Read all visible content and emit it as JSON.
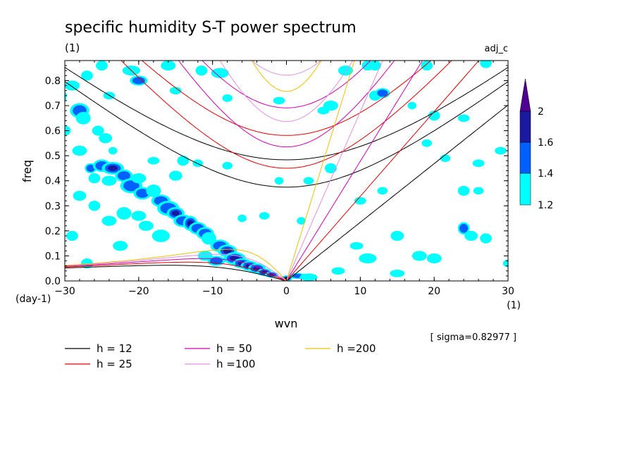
{
  "chart_data": {
    "type": "heatmap",
    "title": "specific humidity S-T power spectrum",
    "subtitle_left": "(1)",
    "subtitle_right": "adj_c",
    "xlabel": "wvn",
    "ylabel": "freq",
    "x_unit": "(1)",
    "y_unit": "(day-1)",
    "xlim": [
      -30,
      30
    ],
    "ylim": [
      0,
      0.88
    ],
    "x_ticks": [
      "-30",
      "-20",
      "-10",
      "0",
      "10",
      "20",
      "30"
    ],
    "y_ticks": [
      "0.0",
      "0.1",
      "0.2",
      "0.3",
      "0.4",
      "0.5",
      "0.6",
      "0.7",
      "0.8"
    ],
    "sigma_note": "[ sigma=0.82977 ]",
    "colorbar": {
      "levels": [
        "1.2",
        "1.4",
        "1.6",
        "2"
      ],
      "colors": [
        "#00ffff",
        "#0060ff",
        "#1a1aa0",
        "#500090"
      ]
    },
    "dispersion_curves": [
      {
        "label": "h = 12",
        "h": 12,
        "color": "#000000"
      },
      {
        "label": "h = 25",
        "h": 25,
        "color": "#e00000"
      },
      {
        "label": "h = 50",
        "h": 50,
        "color": "#d000b0"
      },
      {
        "label": "h =100",
        "h": 100,
        "color": "#e090e0"
      },
      {
        "label": "h =200",
        "h": 200,
        "color": "#f0c000"
      }
    ],
    "blobs": [
      [
        -31.0,
        0.73,
        1.2,
        0.03,
        1
      ],
      [
        -30.5,
        0.74,
        0.8,
        0.02,
        2
      ],
      [
        -29.0,
        0.78,
        1.0,
        0.02,
        0
      ],
      [
        -28,
        0.68,
        1.3,
        0.03,
        1
      ],
      [
        -27.5,
        0.65,
        1.0,
        0.025,
        0
      ],
      [
        -28,
        0.52,
        1.0,
        0.02,
        0
      ],
      [
        -27,
        0.82,
        0.8,
        0.02,
        0
      ],
      [
        -25,
        0.86,
        0.8,
        0.02,
        0
      ],
      [
        -21,
        0.84,
        1.2,
        0.02,
        0
      ],
      [
        -20,
        0.8,
        1.2,
        0.02,
        1
      ],
      [
        -16,
        0.86,
        1.0,
        0.02,
        0
      ],
      [
        -11.5,
        0.84,
        0.8,
        0.02,
        0
      ],
      [
        -9,
        0.83,
        1.2,
        0.02,
        0
      ],
      [
        -24.5,
        0.57,
        0.9,
        0.02,
        0
      ],
      [
        -23.5,
        0.52,
        0.6,
        0.015,
        0
      ],
      [
        -25.5,
        0.6,
        0.8,
        0.02,
        0
      ],
      [
        -26.5,
        0.45,
        0.8,
        0.02,
        1
      ],
      [
        -25,
        0.46,
        1.2,
        0.025,
        1
      ],
      [
        -23.5,
        0.45,
        1.5,
        0.025,
        2
      ],
      [
        -26,
        0.41,
        0.8,
        0.02,
        0
      ],
      [
        -22,
        0.42,
        1.2,
        0.025,
        1
      ],
      [
        -21,
        0.38,
        1.5,
        0.03,
        1
      ],
      [
        -24,
        0.4,
        1.0,
        0.02,
        0
      ],
      [
        -20,
        0.41,
        1.0,
        0.02,
        0
      ],
      [
        -19.5,
        0.35,
        1.2,
        0.025,
        1
      ],
      [
        -18,
        0.36,
        1.0,
        0.025,
        0
      ],
      [
        -17,
        0.32,
        1.3,
        0.025,
        1
      ],
      [
        -16,
        0.29,
        1.5,
        0.03,
        1
      ],
      [
        -15,
        0.27,
        1.2,
        0.025,
        2
      ],
      [
        -14,
        0.24,
        1.3,
        0.025,
        1
      ],
      [
        -13,
        0.23,
        1.0,
        0.03,
        2
      ],
      [
        -12,
        0.21,
        1.2,
        0.025,
        1
      ],
      [
        -11,
        0.19,
        1.2,
        0.025,
        1
      ],
      [
        -10.5,
        0.17,
        1.0,
        0.025,
        0
      ],
      [
        -9,
        0.14,
        1.3,
        0.025,
        1
      ],
      [
        -8,
        0.12,
        1.3,
        0.025,
        2
      ],
      [
        -7,
        0.09,
        1.5,
        0.025,
        2
      ],
      [
        -6,
        0.07,
        1.3,
        0.02,
        3
      ],
      [
        -5,
        0.06,
        1.2,
        0.02,
        2
      ],
      [
        -4,
        0.05,
        1.2,
        0.02,
        3
      ],
      [
        -3,
        0.035,
        1.0,
        0.015,
        2
      ],
      [
        -2,
        0.025,
        0.9,
        0.012,
        3
      ],
      [
        -9.5,
        0.08,
        1.2,
        0.02,
        1
      ],
      [
        -11,
        0.1,
        1.0,
        0.02,
        0
      ],
      [
        0,
        0.01,
        0.8,
        0.012,
        2
      ],
      [
        1.5,
        0.02,
        1.0,
        0.012,
        1
      ],
      [
        3,
        0.015,
        1.2,
        0.015,
        0
      ],
      [
        -22,
        0.27,
        1.0,
        0.025,
        0
      ],
      [
        -20,
        0.26,
        1.0,
        0.02,
        0
      ],
      [
        -24,
        0.24,
        1.0,
        0.02,
        0
      ],
      [
        -19,
        0.22,
        1.0,
        0.02,
        0
      ],
      [
        -17,
        0.18,
        1.2,
        0.025,
        0
      ],
      [
        -28,
        0.34,
        0.9,
        0.02,
        0
      ],
      [
        -26,
        0.3,
        0.8,
        0.02,
        0
      ],
      [
        -22.5,
        0.14,
        1.0,
        0.02,
        0
      ],
      [
        -29,
        0.18,
        0.8,
        0.02,
        0
      ],
      [
        -27,
        0.07,
        0.8,
        0.02,
        0
      ],
      [
        -15,
        0.42,
        0.9,
        0.02,
        0
      ],
      [
        -14,
        0.48,
        0.8,
        0.02,
        0
      ],
      [
        -18,
        0.48,
        0.8,
        0.015,
        0
      ],
      [
        -12,
        0.47,
        0.7,
        0.015,
        0
      ],
      [
        -8,
        0.46,
        0.7,
        0.015,
        0
      ],
      [
        -30,
        0.6,
        0.8,
        0.02,
        0
      ],
      [
        -24,
        0.74,
        0.8,
        0.015,
        0
      ],
      [
        -15,
        0.76,
        0.8,
        0.015,
        0
      ],
      [
        -8,
        0.73,
        0.7,
        0.015,
        0
      ],
      [
        -1,
        0.72,
        0.8,
        0.015,
        0
      ],
      [
        5,
        0.68,
        0.8,
        0.015,
        0
      ],
      [
        6,
        0.7,
        1.0,
        0.02,
        0
      ],
      [
        12,
        0.74,
        0.8,
        0.02,
        0
      ],
      [
        13,
        0.75,
        1.0,
        0.02,
        1
      ],
      [
        8,
        0.84,
        1.0,
        0.02,
        0
      ],
      [
        11,
        0.86,
        0.8,
        0.02,
        0
      ],
      [
        12,
        0.86,
        0.8,
        0.02,
        0
      ],
      [
        19,
        0.86,
        0.8,
        0.02,
        0
      ],
      [
        27,
        0.87,
        0.8,
        0.02,
        0
      ],
      [
        20,
        0.66,
        0.8,
        0.02,
        0
      ],
      [
        24,
        0.65,
        0.8,
        0.015,
        0
      ],
      [
        19,
        0.55,
        0.7,
        0.015,
        0
      ],
      [
        17,
        0.7,
        0.6,
        0.015,
        0
      ],
      [
        21.5,
        0.49,
        0.7,
        0.015,
        0
      ],
      [
        26,
        0.47,
        0.8,
        0.015,
        0
      ],
      [
        29,
        0.52,
        0.8,
        0.015,
        0
      ],
      [
        26,
        0.36,
        0.7,
        0.015,
        0
      ],
      [
        24,
        0.36,
        0.8,
        0.02,
        0
      ],
      [
        13,
        0.36,
        0.7,
        0.015,
        0
      ],
      [
        10,
        0.32,
        0.8,
        0.015,
        0
      ],
      [
        24,
        0.21,
        0.8,
        0.025,
        1
      ],
      [
        25,
        0.18,
        0.9,
        0.02,
        0
      ],
      [
        15,
        0.18,
        0.9,
        0.02,
        0
      ],
      [
        11,
        0.09,
        1.2,
        0.02,
        0
      ],
      [
        9.5,
        0.14,
        0.9,
        0.015,
        0
      ],
      [
        18,
        0.1,
        1.0,
        0.02,
        0
      ],
      [
        20,
        0.09,
        1.0,
        0.02,
        0
      ],
      [
        27,
        0.17,
        0.8,
        0.02,
        0
      ],
      [
        30,
        0.07,
        0.7,
        0.015,
        0
      ],
      [
        15,
        0.03,
        1.0,
        0.015,
        0
      ],
      [
        7,
        0.04,
        0.9,
        0.015,
        0
      ],
      [
        3,
        0.4,
        0.7,
        0.015,
        0
      ],
      [
        6,
        0.45,
        0.8,
        0.02,
        0
      ],
      [
        -6,
        0.25,
        0.6,
        0.015,
        0
      ],
      [
        -3,
        0.26,
        0.7,
        0.015,
        0
      ],
      [
        -1,
        0.4,
        0.6,
        0.015,
        0
      ],
      [
        2,
        0.24,
        0.6,
        0.015,
        0
      ]
    ]
  }
}
